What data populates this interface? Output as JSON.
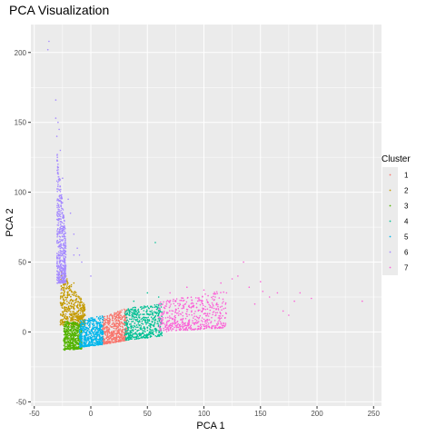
{
  "chart_data": {
    "type": "scatter",
    "title": "PCA Visualization",
    "xlabel": "PCA 1",
    "ylabel": "PCA 2",
    "xlim": [
      -53,
      257
    ],
    "ylim": [
      -53,
      220
    ],
    "x_ticks": [
      -50,
      0,
      50,
      100,
      150,
      200,
      250
    ],
    "y_ticks": [
      -50,
      0,
      50,
      100,
      150,
      200
    ],
    "grid": true,
    "legend": {
      "title": "Cluster",
      "position": "right",
      "entries": [
        "1",
        "2",
        "3",
        "4",
        "5",
        "6",
        "7"
      ]
    },
    "background_color": "#EBEBEB",
    "gridline_color": "#FFFFFF",
    "series": [
      {
        "name": "1",
        "color": "#F8766D",
        "regions": [
          {
            "x": [
              10,
              32
            ],
            "y_lo": [
              -9,
              -6
            ],
            "y_hi": [
              11,
              17
            ]
          }
        ],
        "sample_points": [
          [
            15,
            8
          ],
          [
            25,
            14
          ],
          [
            30,
            -3
          ]
        ]
      },
      {
        "name": "2",
        "color": "#C49A00",
        "regions": [
          {
            "x": [
              -27,
              -5
            ],
            "y_lo": [
              5,
              5
            ],
            "y_hi": [
              45,
              20
            ]
          }
        ],
        "sample_points": [
          [
            -22,
            40
          ],
          [
            -15,
            35
          ],
          [
            -10,
            25
          ],
          [
            -5,
            12
          ]
        ]
      },
      {
        "name": "3",
        "color": "#53B400",
        "regions": [
          {
            "x": [
              -24,
              -8
            ],
            "y_lo": [
              -13,
              -12
            ],
            "y_hi": [
              8,
              6
            ]
          }
        ],
        "sample_points": [
          [
            -20,
            0
          ],
          [
            -12,
            5
          ]
        ]
      },
      {
        "name": "4",
        "color": "#00C094",
        "regions": [
          {
            "x": [
              30,
              63
            ],
            "y_lo": [
              -6,
              -3
            ],
            "y_hi": [
              17,
              20
            ]
          }
        ],
        "sample_points": [
          [
            38,
            22
          ],
          [
            50,
            28
          ],
          [
            55,
            12
          ],
          [
            60,
            25
          ],
          [
            57,
            64
          ],
          [
            45,
            18
          ],
          [
            62,
            20
          ]
        ]
      },
      {
        "name": "5",
        "color": "#00B6EB",
        "regions": [
          {
            "x": [
              -10,
              11
            ],
            "y_lo": [
              -11,
              -9
            ],
            "y_hi": [
              8,
              12
            ]
          }
        ],
        "sample_points": [
          [
            0,
            10
          ],
          [
            5,
            -5
          ]
        ]
      },
      {
        "name": "6",
        "color": "#A58AFF",
        "regions": [
          {
            "x": [
              -30,
              -22
            ],
            "y_lo": [
              35,
              35
            ],
            "y_hi": [
              130,
              70
            ]
          }
        ],
        "sample_points": [
          [
            -37,
            208
          ],
          [
            -38,
            202
          ],
          [
            -31,
            166
          ],
          [
            -31,
            153
          ],
          [
            -29,
            150
          ],
          [
            -30,
            140
          ],
          [
            -28,
            145
          ],
          [
            -27,
            130
          ],
          [
            -29,
            120
          ],
          [
            -25,
            110
          ],
          [
            -20,
            95
          ],
          [
            -18,
            85
          ],
          [
            -15,
            70
          ],
          [
            -12,
            60
          ],
          [
            -8,
            50
          ],
          [
            -15,
            55
          ],
          [
            -10,
            55
          ],
          [
            0,
            40
          ],
          [
            -26,
            30
          ],
          [
            -24,
            35
          ]
        ]
      },
      {
        "name": "7",
        "color": "#FB61D7",
        "regions": [
          {
            "x": [
              60,
              120
            ],
            "y_lo": [
              0,
              3
            ],
            "y_hi": [
              22,
              30
            ]
          }
        ],
        "sample_points": [
          [
            70,
            28
          ],
          [
            85,
            32
          ],
          [
            100,
            30
          ],
          [
            110,
            25
          ],
          [
            115,
            35
          ],
          [
            120,
            28
          ],
          [
            125,
            38
          ],
          [
            130,
            40
          ],
          [
            135,
            50
          ],
          [
            140,
            32
          ],
          [
            145,
            20
          ],
          [
            150,
            36
          ],
          [
            152,
            29
          ],
          [
            158,
            25
          ],
          [
            165,
            28
          ],
          [
            170,
            15
          ],
          [
            175,
            12
          ],
          [
            180,
            22
          ],
          [
            185,
            28
          ],
          [
            195,
            24
          ],
          [
            240,
            22
          ]
        ]
      }
    ]
  }
}
